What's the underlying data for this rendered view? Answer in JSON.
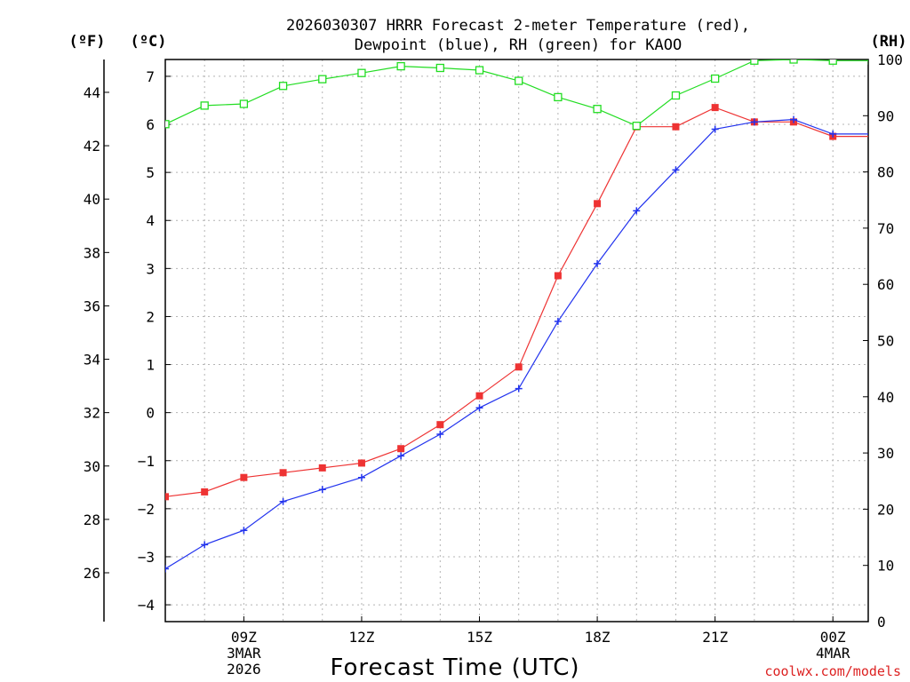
{
  "chart_data": {
    "type": "line",
    "title_line1": "2026030307 HRRR Forecast 2-meter Temperature (red),",
    "title_line2": "Dewpoint (blue), RH (green) for KAOO",
    "xlabel": "Forecast Time (UTC)",
    "credit": "coolwx.com/models",
    "unit_labels": {
      "fahrenheit": "(ºF)",
      "celsius": "(ºC)",
      "rh": "(RH)"
    },
    "x_hours": [
      7,
      8,
      9,
      10,
      11,
      12,
      13,
      14,
      15,
      16,
      17,
      18,
      19,
      20,
      21,
      22,
      23,
      24,
      25
    ],
    "xlim": [
      7,
      24.9
    ],
    "x_ticks": [
      {
        "hour": 9,
        "lines": [
          "09Z",
          "3MAR",
          "2026"
        ]
      },
      {
        "hour": 12,
        "lines": [
          "12Z"
        ]
      },
      {
        "hour": 15,
        "lines": [
          "15Z"
        ]
      },
      {
        "hour": 18,
        "lines": [
          "18Z"
        ]
      },
      {
        "hour": 21,
        "lines": [
          "21Z"
        ]
      },
      {
        "hour": 24,
        "lines": [
          "00Z",
          "4MAR"
        ]
      }
    ],
    "celsius_axis": {
      "ylim": [
        -4.35,
        7.35
      ],
      "ticks": [
        -4,
        -3,
        -2,
        -1,
        0,
        1,
        2,
        3,
        4,
        5,
        6,
        7
      ]
    },
    "fahrenheit_axis": {
      "ticks": [
        26,
        28,
        30,
        32,
        34,
        36,
        38,
        40,
        42,
        44
      ]
    },
    "rh_axis": {
      "ylim": [
        0,
        100
      ],
      "ticks": [
        0,
        10,
        20,
        30,
        40,
        50,
        60,
        70,
        80,
        90,
        100
      ]
    },
    "series": [
      {
        "name": "Temperature",
        "color": "#ee3333",
        "marker": "filled-square",
        "axis": "celsius",
        "values": [
          -1.75,
          -1.65,
          -1.35,
          -1.25,
          -1.15,
          -1.05,
          -0.75,
          -0.25,
          0.35,
          0.95,
          2.85,
          4.35,
          5.95,
          5.95,
          6.35,
          6.05,
          6.05,
          5.75,
          5.75
        ]
      },
      {
        "name": "Dewpoint",
        "color": "#2233ee",
        "marker": "plus",
        "axis": "celsius",
        "values": [
          -3.25,
          -2.75,
          -2.45,
          -1.85,
          -1.6,
          -1.35,
          -0.9,
          -0.45,
          0.1,
          0.5,
          1.9,
          3.1,
          4.2,
          5.05,
          5.9,
          6.05,
          6.1,
          5.8,
          5.8
        ]
      },
      {
        "name": "RH",
        "color": "#22dd22",
        "marker": "open-square",
        "axis": "rh",
        "values": [
          88.5,
          91.8,
          92.1,
          95.3,
          96.5,
          97.6,
          98.8,
          98.5,
          98.1,
          96.2,
          93.3,
          91.2,
          88.2,
          93.6,
          96.6,
          99.8,
          100,
          99.8,
          99.8
        ]
      }
    ]
  }
}
